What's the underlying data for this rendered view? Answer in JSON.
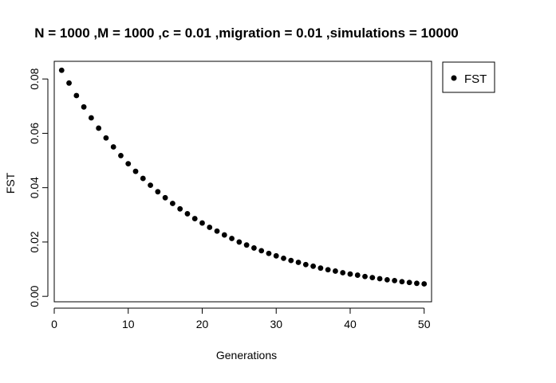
{
  "chart_data": {
    "type": "scatter",
    "title": "N = 1000 ,M = 1000 ,c = 0.01 ,migration = 0.01 ,simulations = 10000",
    "xlabel": "Generations",
    "ylabel": "FST",
    "xlim": [
      0,
      51
    ],
    "ylim": [
      -0.002,
      0.0865
    ],
    "xticks": [
      0,
      10,
      20,
      30,
      40,
      50
    ],
    "yticks": [
      0.0,
      0.02,
      0.04,
      0.06,
      0.08
    ],
    "xtick_labels": [
      "0",
      "10",
      "20",
      "30",
      "40",
      "50"
    ],
    "ytick_labels": [
      "0.00",
      "0.02",
      "0.04",
      "0.06",
      "0.08"
    ],
    "grid": false,
    "legend_position": "outside-top-right",
    "series": [
      {
        "name": "FST",
        "color": "#000000",
        "marker": "filled-circle",
        "x": [
          1,
          2,
          3,
          4,
          5,
          6,
          7,
          8,
          9,
          10,
          11,
          12,
          13,
          14,
          15,
          16,
          17,
          18,
          19,
          20,
          21,
          22,
          23,
          24,
          25,
          26,
          27,
          28,
          29,
          30,
          31,
          32,
          33,
          34,
          35,
          36,
          37,
          38,
          39,
          40,
          41,
          42,
          43,
          44,
          45,
          46,
          47,
          48,
          49,
          50
        ],
        "y": [
          0.0832,
          0.0785,
          0.0739,
          0.0697,
          0.0657,
          0.0619,
          0.0583,
          0.055,
          0.0518,
          0.0488,
          0.046,
          0.0434,
          0.0409,
          0.0385,
          0.0363,
          0.0342,
          0.0322,
          0.0304,
          0.0286,
          0.027,
          0.0254,
          0.024,
          0.0226,
          0.0213,
          0.02,
          0.0189,
          0.0178,
          0.0168,
          0.0158,
          0.0149,
          0.014,
          0.0132,
          0.0125,
          0.0117,
          0.0111,
          0.0104,
          0.0098,
          0.0093,
          0.0087,
          0.0082,
          0.0078,
          0.0073,
          0.0069,
          0.0065,
          0.0061,
          0.0058,
          0.0054,
          0.0051,
          0.0048,
          0.0046
        ]
      }
    ]
  }
}
